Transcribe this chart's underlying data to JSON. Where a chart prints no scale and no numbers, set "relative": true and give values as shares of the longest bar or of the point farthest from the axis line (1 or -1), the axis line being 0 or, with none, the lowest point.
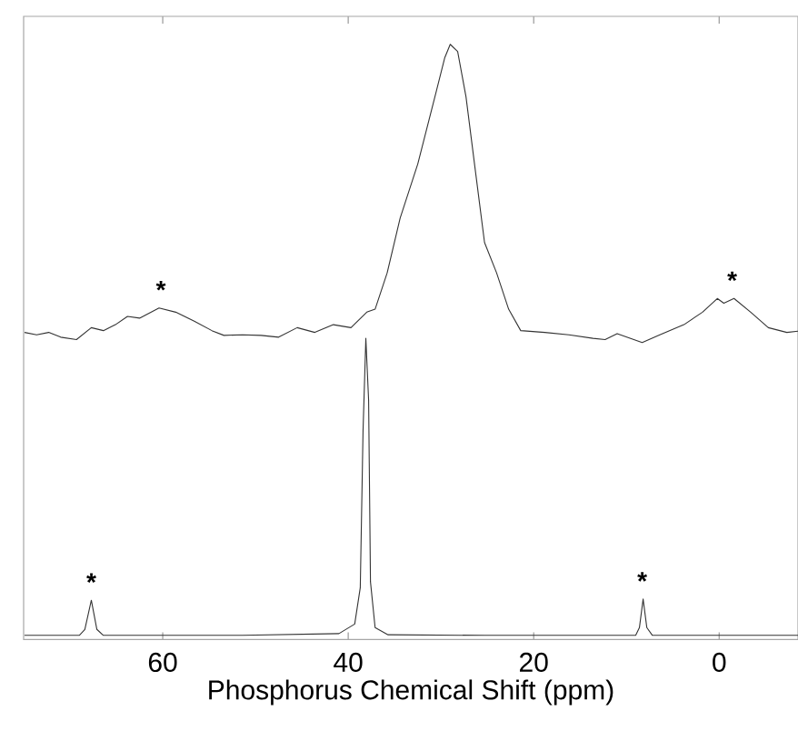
{
  "chart_data": {
    "type": "line",
    "xlabel": "Phosphorus Chemical Shift (ppm)",
    "relative": true,
    "xlim": [
      75,
      -8.5
    ],
    "xticks": [
      60,
      40,
      20,
      0
    ],
    "series": [
      {
        "color": "#333333",
        "x": [
          74.9,
          73.6,
          72.3,
          71.0,
          69.3,
          67.7,
          66.4,
          65.1,
          63.8,
          62.5,
          60.4,
          58.6,
          56.6,
          54.7,
          53.4,
          51.4,
          49.4,
          47.5,
          45.5,
          43.6,
          41.6,
          39.7,
          38.0,
          37.1,
          35.8,
          34.4,
          32.5,
          30.5,
          29.6,
          29.0,
          28.2,
          27.3,
          26.3,
          25.3,
          24.0,
          22.7,
          21.4,
          18.8,
          16.2,
          13.6,
          12.3,
          11.0,
          8.3,
          6.4,
          3.8,
          1.8,
          0.2,
          -0.5,
          -1.6,
          -3.4,
          -5.3,
          -7.3,
          -8.5
        ],
        "values": [
          0.516,
          0.512,
          0.516,
          0.508,
          0.504,
          0.524,
          0.519,
          0.529,
          0.543,
          0.54,
          0.557,
          0.55,
          0.535,
          0.519,
          0.511,
          0.512,
          0.511,
          0.508,
          0.524,
          0.516,
          0.529,
          0.524,
          0.55,
          0.555,
          0.616,
          0.708,
          0.799,
          0.921,
          0.977,
          1,
          0.988,
          0.912,
          0.789,
          0.667,
          0.616,
          0.555,
          0.519,
          0.516,
          0.512,
          0.506,
          0.504,
          0.514,
          0.499,
          0.512,
          0.529,
          0.55,
          0.573,
          0.565,
          0.573,
          0.55,
          0.524,
          0.516,
          0.518
        ]
      },
      {
        "color": "#333333",
        "x": [
          74.9,
          69.0,
          68.4,
          67.7,
          67.1,
          66.4,
          51.4,
          41.0,
          39.3,
          38.7,
          38.4,
          38.1,
          37.8,
          37.6,
          37.1,
          35.7,
          25.3,
          9.0,
          8.6,
          8.2,
          7.8,
          7.2,
          -8.5
        ],
        "values": [
          0.007,
          0.007,
          0.017,
          0.066,
          0.017,
          0.007,
          0.007,
          0.01,
          0.026,
          0.087,
          0.351,
          0.506,
          0.402,
          0.097,
          0.02,
          0.008,
          0.007,
          0.007,
          0.02,
          0.068,
          0.02,
          0.007,
          0.007
        ]
      }
    ],
    "annotations": [
      {
        "text": "*",
        "x": 60.2,
        "y": 0.557
      },
      {
        "text": "*",
        "x": -1.4,
        "y": 0.573
      },
      {
        "text": "*",
        "x": 67.7,
        "y": 0.066
      },
      {
        "text": "*",
        "x": 8.3,
        "y": 0.068
      }
    ]
  }
}
